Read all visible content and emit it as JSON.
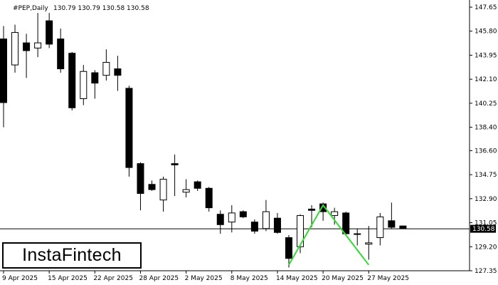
{
  "header": {
    "symbol_label": "#PEP,Daily",
    "ohlc_label": "130.79 130.79 130.58 130.58"
  },
  "logo": {
    "text": "InstaFintech"
  },
  "colors": {
    "bull_candle": "#ffffff",
    "bear_candle": "#000000",
    "pattern_line": "#33dd33",
    "price_line": "#000000",
    "price_badge": "#000000"
  },
  "chart_data": {
    "type": "candlestick",
    "symbol": "#PEP",
    "timeframe": "Daily",
    "ylim": [
      127.35,
      148.2
    ],
    "y_ticks": [
      "147.65",
      "145.80",
      "143.95",
      "142.10",
      "140.25",
      "138.40",
      "136.60",
      "134.75",
      "132.90",
      "131.05",
      "129.20",
      "127.35"
    ],
    "x_ticks": [
      "9 Apr 2025",
      "15 Apr 2025",
      "22 Apr 2025",
      "28 Apr 2025",
      "2 May 2025",
      "8 May 2025",
      "14 May 2025",
      "20 May 2025",
      "27 May 2025"
    ],
    "current_price": "130.58",
    "candles": [
      {
        "o": 145.2,
        "h": 146.2,
        "l": 138.4,
        "c": 140.3
      },
      {
        "o": 143.2,
        "h": 146.3,
        "l": 142.6,
        "c": 145.7
      },
      {
        "o": 144.9,
        "h": 145.6,
        "l": 142.2,
        "c": 144.3
      },
      {
        "o": 144.5,
        "h": 147.2,
        "l": 143.8,
        "c": 144.9
      },
      {
        "o": 146.6,
        "h": 147.2,
        "l": 144.5,
        "c": 144.8
      },
      {
        "o": 145.2,
        "h": 146.0,
        "l": 142.6,
        "c": 142.9
      },
      {
        "o": 144.1,
        "h": 144.2,
        "l": 139.7,
        "c": 139.9
      },
      {
        "o": 140.6,
        "h": 143.2,
        "l": 140.1,
        "c": 142.7
      },
      {
        "o": 142.6,
        "h": 142.8,
        "l": 140.6,
        "c": 141.8
      },
      {
        "o": 142.4,
        "h": 144.4,
        "l": 142.0,
        "c": 143.4
      },
      {
        "o": 142.9,
        "h": 143.9,
        "l": 141.2,
        "c": 142.4
      },
      {
        "o": 141.4,
        "h": 141.6,
        "l": 134.6,
        "c": 135.3
      },
      {
        "o": 135.6,
        "h": 135.7,
        "l": 132.0,
        "c": 133.3
      },
      {
        "o": 134.0,
        "h": 134.3,
        "l": 133.5,
        "c": 133.6
      },
      {
        "o": 132.8,
        "h": 134.6,
        "l": 131.9,
        "c": 134.4
      },
      {
        "o": 135.6,
        "h": 136.3,
        "l": 133.1,
        "c": 135.5
      },
      {
        "o": 133.4,
        "h": 134.4,
        "l": 133.0,
        "c": 133.6
      },
      {
        "o": 134.2,
        "h": 134.3,
        "l": 133.5,
        "c": 133.7
      },
      {
        "o": 133.7,
        "h": 133.8,
        "l": 131.9,
        "c": 132.2
      },
      {
        "o": 131.7,
        "h": 132.0,
        "l": 130.2,
        "c": 130.9
      },
      {
        "o": 131.1,
        "h": 132.4,
        "l": 130.3,
        "c": 131.8
      },
      {
        "o": 131.9,
        "h": 132.0,
        "l": 131.4,
        "c": 131.5
      },
      {
        "o": 131.1,
        "h": 131.3,
        "l": 130.2,
        "c": 130.4
      },
      {
        "o": 130.6,
        "h": 132.8,
        "l": 130.4,
        "c": 131.9
      },
      {
        "o": 131.4,
        "h": 131.8,
        "l": 130.2,
        "c": 130.3
      },
      {
        "o": 129.9,
        "h": 130.1,
        "l": 127.6,
        "c": 128.3
      },
      {
        "o": 129.2,
        "h": 131.7,
        "l": 128.7,
        "c": 131.6
      },
      {
        "o": 132.1,
        "h": 132.4,
        "l": 130.7,
        "c": 132.0
      },
      {
        "o": 132.5,
        "h": 132.6,
        "l": 131.2,
        "c": 131.9
      },
      {
        "o": 131.6,
        "h": 132.2,
        "l": 130.9,
        "c": 131.9
      },
      {
        "o": 131.8,
        "h": 131.9,
        "l": 130.2,
        "c": 130.2
      },
      {
        "o": 130.2,
        "h": 130.6,
        "l": 129.3,
        "c": 130.2
      },
      {
        "o": 129.4,
        "h": 130.8,
        "l": 128.2,
        "c": 129.5
      },
      {
        "o": 129.9,
        "h": 131.8,
        "l": 129.3,
        "c": 131.5
      },
      {
        "o": 131.2,
        "h": 132.6,
        "l": 130.6,
        "c": 130.7
      },
      {
        "o": 130.8,
        "h": 130.8,
        "l": 130.6,
        "c": 130.6
      }
    ],
    "pattern": {
      "name": "double bottom",
      "points": [
        {
          "i": 25,
          "y": 127.8
        },
        {
          "i": 28,
          "y": 132.4
        },
        {
          "i": 32,
          "y": 127.8
        }
      ]
    }
  }
}
